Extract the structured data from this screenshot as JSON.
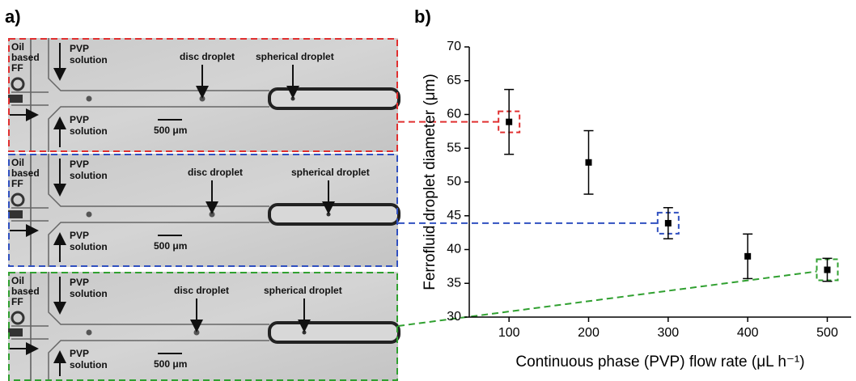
{
  "panel_labels": [
    "a)",
    "b)"
  ],
  "micrographs": [
    {
      "color": "#e03030",
      "oil_label": [
        "Oil",
        "based",
        "FF"
      ],
      "pvp_top": [
        "PVP",
        "solution"
      ],
      "pvp_bottom": [
        "PVP",
        "solution"
      ],
      "disc": "disc droplet",
      "spherical": "spherical droplet",
      "scale": "500 μm"
    },
    {
      "color": "#3050c0",
      "oil_label": [
        "Oil",
        "based",
        "FF"
      ],
      "pvp_top": [
        "PVP",
        "solution"
      ],
      "pvp_bottom": [
        "PVP",
        "solution"
      ],
      "disc": "disc droplet",
      "spherical": "spherical droplet",
      "scale": "500 μm"
    },
    {
      "color": "#30a030",
      "oil_label": [
        "Oil",
        "based",
        "FF"
      ],
      "pvp_top": [
        "PVP",
        "solution"
      ],
      "pvp_bottom": [
        "PVP",
        "solution"
      ],
      "disc": "disc droplet",
      "spherical": "spherical droplet",
      "scale": "500 μm"
    }
  ],
  "chart_data": {
    "type": "scatter",
    "x_label": "Continuous phase (PVP) flow rate (μL h⁻¹)",
    "y_label": "Ferrofluid droplet diameter (μm)",
    "x": [
      100,
      200,
      300,
      400,
      500
    ],
    "values": [
      58.9,
      52.9,
      43.9,
      39.0,
      37.0
    ],
    "errors": [
      4.8,
      4.7,
      2.3,
      3.3,
      1.7
    ],
    "color": "#000000",
    "xlim": [
      50,
      530
    ],
    "xticks": [
      100,
      200,
      300,
      400,
      500
    ],
    "ylim": [
      30,
      70
    ],
    "yticks": [
      30,
      35,
      40,
      45,
      50,
      55,
      60,
      65,
      70
    ]
  }
}
